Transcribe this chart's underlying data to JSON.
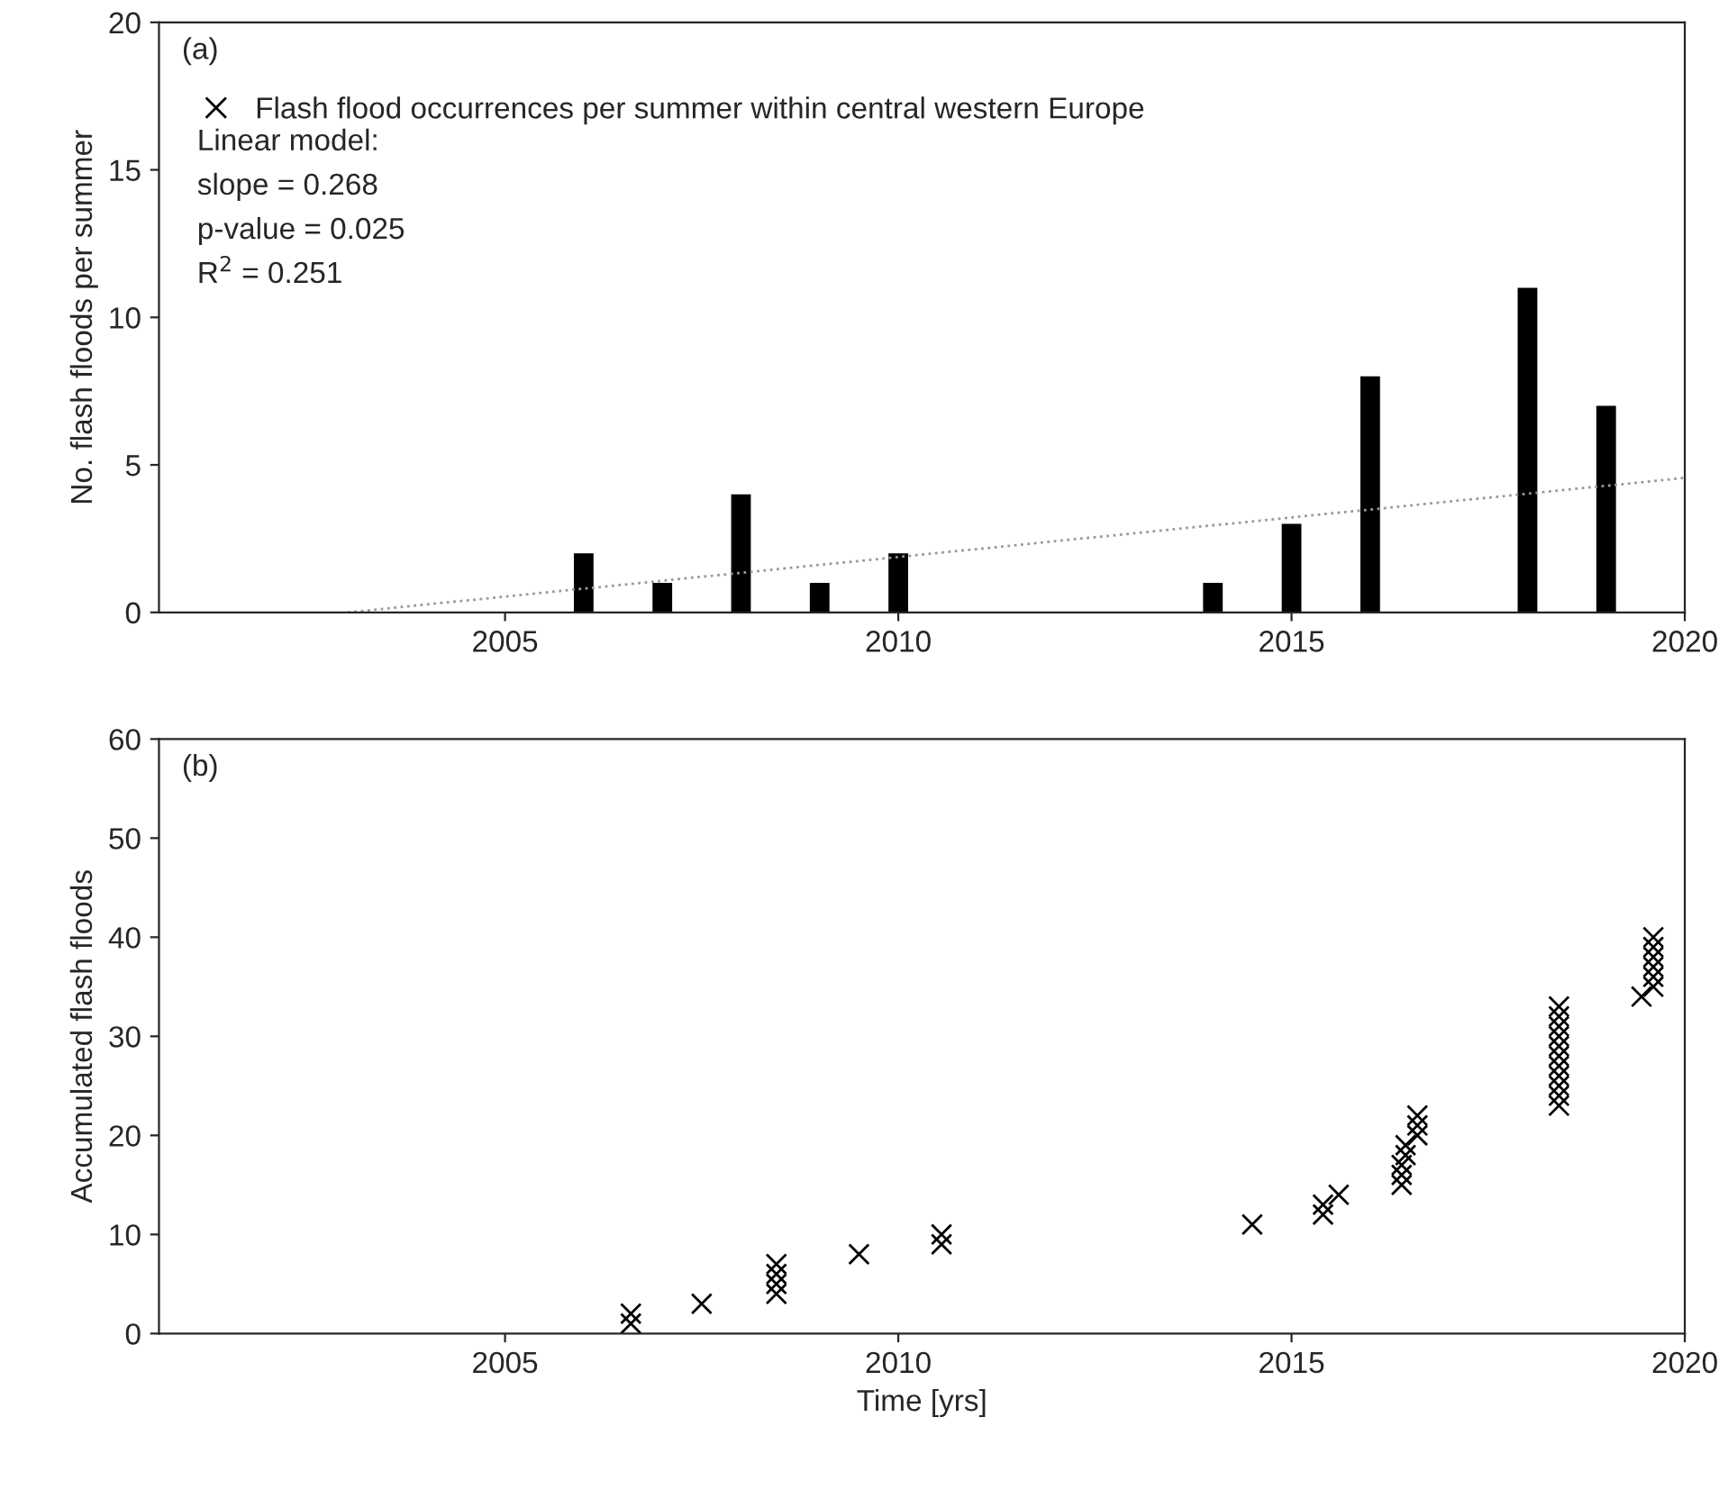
{
  "chart_data": [
    {
      "type": "bar",
      "ylabel": "No. flash floods per summer",
      "xlim": [
        2000.6,
        2020
      ],
      "xticks": [
        2005,
        2010,
        2015,
        2020
      ],
      "ylim": [
        0,
        20
      ],
      "yticks": [
        0,
        5,
        10,
        15,
        20
      ],
      "legend": "top left",
      "grid": false,
      "annotations": [
        "(a)",
        "Linear model:",
        "slope = 0.268",
        "p-value = 0.025",
        "R$^{2}$ = 0.251"
      ],
      "series": [
        {
          "name": "Flash flood occurrences per summer within central western Europe",
          "color": "#000000",
          "marker": "cross",
          "x": [
            2006,
            2007,
            2008,
            2009,
            2010,
            2014,
            2015,
            2016,
            2018,
            2019
          ],
          "values": [
            2,
            1,
            4,
            1,
            2,
            1,
            3,
            8,
            11,
            7
          ]
        },
        {
          "type": "line",
          "color": "#999999",
          "line_style": "dotted",
          "x": [
            2003,
            2020
          ],
          "values": [
            0,
            4.56
          ]
        }
      ]
    },
    {
      "type": "scatter",
      "xlabel": "Time [yrs]",
      "ylabel": "Accumulated flash floods",
      "xlim": [
        2000.6,
        2020
      ],
      "xticks": [
        2005,
        2010,
        2015,
        2020
      ],
      "ylim": [
        0,
        60
      ],
      "yticks": [
        0,
        10,
        20,
        30,
        40,
        50,
        60
      ],
      "marker": "cross",
      "grid": false,
      "annotations": [
        "(b)"
      ],
      "series": [
        {
          "color": "#000000",
          "x": [
            2006.6,
            2006.6,
            2007.5,
            2008.45,
            2008.45,
            2008.45,
            2008.45,
            2009.5,
            2010.55,
            2010.55,
            2014.5,
            2015.4,
            2015.4,
            2015.6,
            2016.4,
            2016.4,
            2016.4,
            2016.45,
            2016.45,
            2016.6,
            2016.6,
            2016.6,
            2018.4,
            2018.4,
            2018.4,
            2018.4,
            2018.4,
            2018.4,
            2018.4,
            2018.4,
            2018.4,
            2018.4,
            2018.4,
            2019.45,
            2019.6,
            2019.6,
            2019.6,
            2019.6,
            2019.6,
            2019.6
          ],
          "values": [
            1,
            2,
            3,
            4,
            5,
            6,
            7,
            8,
            9,
            10,
            11,
            12,
            13,
            14,
            15,
            16,
            17,
            18,
            19,
            20,
            21,
            22,
            23,
            24,
            25,
            26,
            27,
            28,
            29,
            30,
            31,
            32,
            33,
            34,
            35,
            36,
            37,
            38,
            39,
            40
          ]
        }
      ]
    }
  ]
}
